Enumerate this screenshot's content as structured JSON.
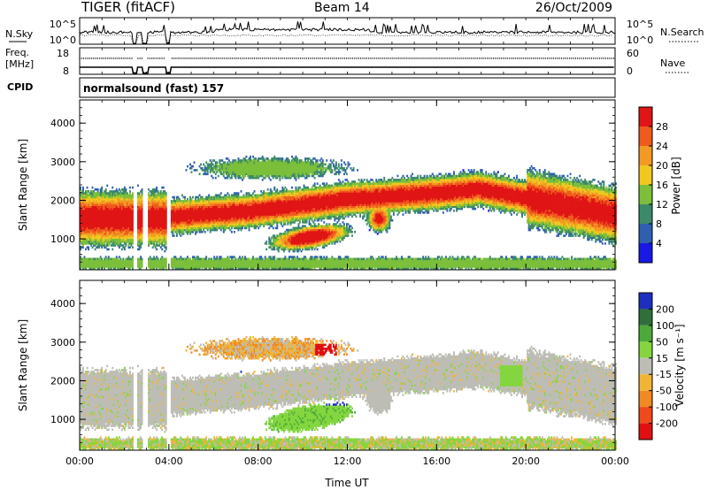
{
  "header": {
    "radar_title": "TIGER (fitACF)",
    "beam": "Beam 14",
    "date": "26/Oct/2009"
  },
  "top_strips": {
    "nsky_label": "N.Sky",
    "nsky_ticks": [
      "10^5",
      "10^0"
    ],
    "nsearch_label": "N.Search",
    "nsearch_ticks": [
      "10^5",
      "10^0"
    ],
    "freq_label_1": "Freq.",
    "freq_label_2": "[MHz]",
    "freq_ticks": [
      "18",
      "8"
    ],
    "nave_label": "Nave",
    "nave_ticks": [
      "60",
      "0"
    ],
    "cpid_label": "CPID",
    "cpid_value": "normalsound (fast) 157"
  },
  "chart_data": [
    {
      "type": "heatmap",
      "name": "power",
      "ylabel": "Slant Range [km]",
      "ylim": [
        200,
        4600
      ],
      "yticks": [
        "1000",
        "2000",
        "3000",
        "4000"
      ],
      "xlim": [
        0,
        24
      ],
      "colorbar_label": "Power [dB]",
      "colorbar_ticks": [
        "4",
        "8",
        "12",
        "16",
        "20",
        "24",
        "28"
      ],
      "colors": [
        "#1919e6",
        "#2f5fb0",
        "#3c8a6a",
        "#7bbf3a",
        "#f0c820",
        "#f39a22",
        "#ef5a1e",
        "#e01515"
      ]
    },
    {
      "type": "heatmap",
      "name": "velocity",
      "ylabel": "Slant Range [km]",
      "ylim": [
        200,
        4600
      ],
      "yticks": [
        "1000",
        "2000",
        "3000",
        "4000"
      ],
      "xlim": [
        0,
        24
      ],
      "xticks": [
        "00:00",
        "04:00",
        "08:00",
        "12:00",
        "16:00",
        "20:00",
        "00:00"
      ],
      "xlabel": "Time UT",
      "colorbar_label": "Velocity [m s⁻¹]",
      "colorbar_ticks": [
        "200",
        "100",
        "50",
        "15",
        "-15",
        "-50",
        "-100",
        "-200"
      ],
      "colors": [
        "#1d2fc0",
        "#2f6f3a",
        "#4caa3a",
        "#84d63f",
        "#bdbdb6",
        "#f1b535",
        "#f08a22",
        "#ef4a1a",
        "#e01010"
      ]
    }
  ]
}
